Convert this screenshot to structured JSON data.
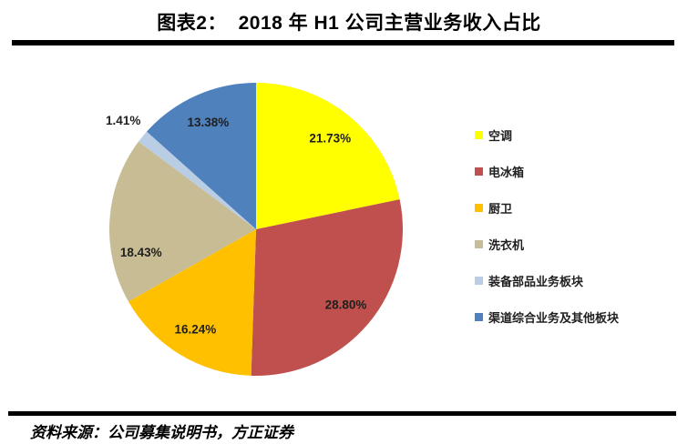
{
  "header": {
    "title": "图表2：  2018 年 H1 公司主营业务收入占比"
  },
  "chart_data": {
    "type": "pie",
    "title": "2018 年 H1 公司主营业务收入占比",
    "start_angle_deg": 0,
    "direction": "clockwise",
    "legend_position": "right",
    "data_labels": "percent",
    "total_percent": 99.99,
    "slices": [
      {
        "label": "空调",
        "value": 21.73,
        "display": "21.73%",
        "color": "#FFFF00"
      },
      {
        "label": "电冰箱",
        "value": 28.8,
        "display": "28.80%",
        "color": "#C0504D"
      },
      {
        "label": "厨卫",
        "value": 16.24,
        "display": "16.24%",
        "color": "#FFC000"
      },
      {
        "label": "洗衣机",
        "value": 18.43,
        "display": "18.43%",
        "color": "#C7BC93",
        "label_nudge_deg": -15
      },
      {
        "label": "装备部品业务板块",
        "value": 1.41,
        "display": "1.41%",
        "color": "#B9CDE5"
      },
      {
        "label": "渠道综合业务及其他板块",
        "value": 13.38,
        "display": "13.38%",
        "color": "#4F81BD"
      }
    ]
  },
  "footer": {
    "source": "资料来源：公司募集说明书，方正证券"
  }
}
